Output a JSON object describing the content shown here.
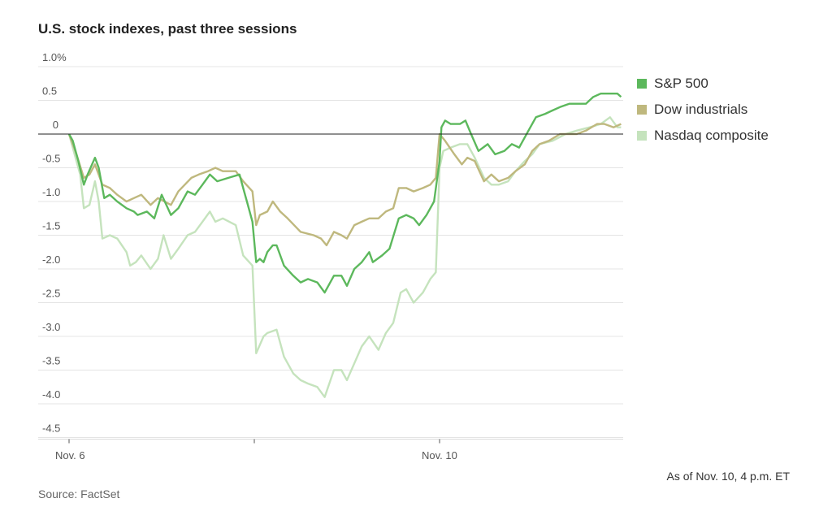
{
  "chart_data": {
    "type": "line",
    "title": "U.S. stock indexes, past three sessions",
    "xlabel": "",
    "ylabel": "",
    "x_units": "trading sessions since Nov. 6 open",
    "xlim": [
      0,
      3
    ],
    "ylim": [
      -4.5,
      1.0
    ],
    "y_ticks": [
      {
        "v": 1.0,
        "label": "1.0%"
      },
      {
        "v": 0.5,
        "label": "0.5"
      },
      {
        "v": 0,
        "label": "0"
      },
      {
        "v": -0.5,
        "label": "-0.5"
      },
      {
        "v": -1.0,
        "label": "-1.0"
      },
      {
        "v": -1.5,
        "label": "-1.5"
      },
      {
        "v": -2.0,
        "label": "-2.0"
      },
      {
        "v": -2.5,
        "label": "-2.5"
      },
      {
        "v": -3.0,
        "label": "-3.0"
      },
      {
        "v": -3.5,
        "label": "-3.5"
      },
      {
        "v": -4.0,
        "label": "-4.0"
      },
      {
        "v": -4.5,
        "label": "-4.5"
      }
    ],
    "x_ticks": [
      {
        "v": 0,
        "label": "Nov. 6"
      },
      {
        "v": 1,
        "label": ""
      },
      {
        "v": 2,
        "label": "Nov. 10"
      }
    ],
    "grid": true,
    "legend_position": "right",
    "series": [
      {
        "name": "Nasdaq composite",
        "color": "#c5e3bd",
        "points": [
          [
            0,
            0
          ],
          [
            0.03,
            -0.3
          ],
          [
            0.06,
            -0.6
          ],
          [
            0.08,
            -1.1
          ],
          [
            0.11,
            -1.05
          ],
          [
            0.14,
            -0.7
          ],
          [
            0.16,
            -1.0
          ],
          [
            0.18,
            -1.55
          ],
          [
            0.22,
            -1.5
          ],
          [
            0.26,
            -1.55
          ],
          [
            0.31,
            -1.75
          ],
          [
            0.33,
            -1.95
          ],
          [
            0.36,
            -1.9
          ],
          [
            0.39,
            -1.8
          ],
          [
            0.44,
            -2.0
          ],
          [
            0.48,
            -1.85
          ],
          [
            0.51,
            -1.5
          ],
          [
            0.55,
            -1.85
          ],
          [
            0.59,
            -1.7
          ],
          [
            0.64,
            -1.5
          ],
          [
            0.68,
            -1.45
          ],
          [
            0.72,
            -1.3
          ],
          [
            0.76,
            -1.15
          ],
          [
            0.79,
            -1.3
          ],
          [
            0.83,
            -1.25
          ],
          [
            0.9,
            -1.35
          ],
          [
            0.94,
            -1.8
          ],
          [
            0.99,
            -1.95
          ],
          [
            1.01,
            -3.25
          ],
          [
            1.05,
            -3.0
          ],
          [
            1.07,
            -2.95
          ],
          [
            1.12,
            -2.9
          ],
          [
            1.16,
            -3.3
          ],
          [
            1.21,
            -3.55
          ],
          [
            1.25,
            -3.65
          ],
          [
            1.29,
            -3.7
          ],
          [
            1.34,
            -3.75
          ],
          [
            1.38,
            -3.9
          ],
          [
            1.43,
            -3.5
          ],
          [
            1.47,
            -3.5
          ],
          [
            1.5,
            -3.65
          ],
          [
            1.54,
            -3.4
          ],
          [
            1.58,
            -3.15
          ],
          [
            1.62,
            -3.0
          ],
          [
            1.67,
            -3.2
          ],
          [
            1.71,
            -2.95
          ],
          [
            1.75,
            -2.8
          ],
          [
            1.79,
            -2.35
          ],
          [
            1.82,
            -2.3
          ],
          [
            1.86,
            -2.5
          ],
          [
            1.91,
            -2.35
          ],
          [
            1.95,
            -2.15
          ],
          [
            1.98,
            -2.05
          ],
          [
            2.0,
            -0.5
          ],
          [
            2.02,
            -0.25
          ],
          [
            2.06,
            -0.2
          ],
          [
            2.11,
            -0.15
          ],
          [
            2.15,
            -0.15
          ],
          [
            2.19,
            -0.35
          ],
          [
            2.24,
            -0.65
          ],
          [
            2.28,
            -0.75
          ],
          [
            2.32,
            -0.75
          ],
          [
            2.37,
            -0.7
          ],
          [
            2.41,
            -0.55
          ],
          [
            2.46,
            -0.4
          ],
          [
            2.5,
            -0.3
          ],
          [
            2.54,
            -0.15
          ],
          [
            2.61,
            -0.1
          ],
          [
            2.68,
            0.0
          ],
          [
            2.74,
            0.05
          ],
          [
            2.81,
            0.1
          ],
          [
            2.87,
            0.15
          ],
          [
            2.92,
            0.25
          ],
          [
            2.96,
            0.1
          ],
          [
            2.98,
            0.1
          ]
        ]
      },
      {
        "name": "Dow industrials",
        "color": "#bfb87e",
        "points": [
          [
            0,
            0
          ],
          [
            0.04,
            -0.3
          ],
          [
            0.08,
            -0.65
          ],
          [
            0.11,
            -0.6
          ],
          [
            0.14,
            -0.45
          ],
          [
            0.18,
            -0.75
          ],
          [
            0.22,
            -0.8
          ],
          [
            0.26,
            -0.9
          ],
          [
            0.31,
            -1.0
          ],
          [
            0.35,
            -0.95
          ],
          [
            0.39,
            -0.9
          ],
          [
            0.44,
            -1.05
          ],
          [
            0.48,
            -0.95
          ],
          [
            0.55,
            -1.05
          ],
          [
            0.59,
            -0.85
          ],
          [
            0.66,
            -0.65
          ],
          [
            0.7,
            -0.6
          ],
          [
            0.75,
            -0.55
          ],
          [
            0.79,
            -0.5
          ],
          [
            0.83,
            -0.55
          ],
          [
            0.9,
            -0.55
          ],
          [
            0.94,
            -0.7
          ],
          [
            0.99,
            -0.85
          ],
          [
            1.01,
            -1.35
          ],
          [
            1.03,
            -1.2
          ],
          [
            1.07,
            -1.15
          ],
          [
            1.1,
            -1.0
          ],
          [
            1.14,
            -1.15
          ],
          [
            1.18,
            -1.25
          ],
          [
            1.25,
            -1.45
          ],
          [
            1.32,
            -1.5
          ],
          [
            1.36,
            -1.55
          ],
          [
            1.39,
            -1.65
          ],
          [
            1.43,
            -1.45
          ],
          [
            1.47,
            -1.5
          ],
          [
            1.5,
            -1.55
          ],
          [
            1.54,
            -1.35
          ],
          [
            1.58,
            -1.3
          ],
          [
            1.62,
            -1.25
          ],
          [
            1.67,
            -1.25
          ],
          [
            1.71,
            -1.15
          ],
          [
            1.75,
            -1.1
          ],
          [
            1.78,
            -0.8
          ],
          [
            1.82,
            -0.8
          ],
          [
            1.86,
            -0.85
          ],
          [
            1.91,
            -0.8
          ],
          [
            1.95,
            -0.75
          ],
          [
            1.98,
            -0.65
          ],
          [
            2.0,
            0.0
          ],
          [
            2.03,
            -0.1
          ],
          [
            2.08,
            -0.3
          ],
          [
            2.12,
            -0.45
          ],
          [
            2.15,
            -0.35
          ],
          [
            2.19,
            -0.4
          ],
          [
            2.24,
            -0.7
          ],
          [
            2.28,
            -0.6
          ],
          [
            2.32,
            -0.7
          ],
          [
            2.37,
            -0.65
          ],
          [
            2.41,
            -0.55
          ],
          [
            2.46,
            -0.45
          ],
          [
            2.5,
            -0.25
          ],
          [
            2.54,
            -0.15
          ],
          [
            2.59,
            -0.1
          ],
          [
            2.65,
            0.0
          ],
          [
            2.7,
            0.0
          ],
          [
            2.74,
            0.0
          ],
          [
            2.79,
            0.05
          ],
          [
            2.85,
            0.15
          ],
          [
            2.89,
            0.15
          ],
          [
            2.94,
            0.1
          ],
          [
            2.98,
            0.15
          ]
        ]
      },
      {
        "name": "S&P 500",
        "color": "#5cb85c",
        "points": [
          [
            0,
            0
          ],
          [
            0.02,
            -0.1
          ],
          [
            0.05,
            -0.4
          ],
          [
            0.08,
            -0.75
          ],
          [
            0.1,
            -0.6
          ],
          [
            0.14,
            -0.35
          ],
          [
            0.16,
            -0.5
          ],
          [
            0.19,
            -0.95
          ],
          [
            0.22,
            -0.9
          ],
          [
            0.26,
            -1.0
          ],
          [
            0.31,
            -1.1
          ],
          [
            0.35,
            -1.15
          ],
          [
            0.37,
            -1.2
          ],
          [
            0.42,
            -1.15
          ],
          [
            0.46,
            -1.25
          ],
          [
            0.5,
            -0.9
          ],
          [
            0.55,
            -1.2
          ],
          [
            0.59,
            -1.1
          ],
          [
            0.64,
            -0.85
          ],
          [
            0.68,
            -0.9
          ],
          [
            0.72,
            -0.75
          ],
          [
            0.76,
            -0.6
          ],
          [
            0.8,
            -0.7
          ],
          [
            0.86,
            -0.65
          ],
          [
            0.92,
            -0.6
          ],
          [
            0.94,
            -0.8
          ],
          [
            0.96,
            -1.0
          ],
          [
            0.99,
            -1.3
          ],
          [
            1.01,
            -1.9
          ],
          [
            1.03,
            -1.85
          ],
          [
            1.05,
            -1.9
          ],
          [
            1.07,
            -1.75
          ],
          [
            1.1,
            -1.65
          ],
          [
            1.12,
            -1.65
          ],
          [
            1.16,
            -1.95
          ],
          [
            1.21,
            -2.1
          ],
          [
            1.25,
            -2.2
          ],
          [
            1.29,
            -2.15
          ],
          [
            1.34,
            -2.2
          ],
          [
            1.38,
            -2.35
          ],
          [
            1.43,
            -2.1
          ],
          [
            1.47,
            -2.1
          ],
          [
            1.5,
            -2.25
          ],
          [
            1.54,
            -2.0
          ],
          [
            1.58,
            -1.9
          ],
          [
            1.62,
            -1.75
          ],
          [
            1.64,
            -1.9
          ],
          [
            1.69,
            -1.8
          ],
          [
            1.73,
            -1.7
          ],
          [
            1.78,
            -1.25
          ],
          [
            1.82,
            -1.2
          ],
          [
            1.86,
            -1.25
          ],
          [
            1.89,
            -1.35
          ],
          [
            1.93,
            -1.2
          ],
          [
            1.97,
            -1.0
          ],
          [
            2.0,
            -0.4
          ],
          [
            2.01,
            0.1
          ],
          [
            2.03,
            0.2
          ],
          [
            2.06,
            0.15
          ],
          [
            2.11,
            0.15
          ],
          [
            2.14,
            0.2
          ],
          [
            2.17,
            0.0
          ],
          [
            2.21,
            -0.25
          ],
          [
            2.26,
            -0.15
          ],
          [
            2.3,
            -0.3
          ],
          [
            2.35,
            -0.25
          ],
          [
            2.39,
            -0.15
          ],
          [
            2.43,
            -0.2
          ],
          [
            2.48,
            0.05
          ],
          [
            2.52,
            0.25
          ],
          [
            2.57,
            0.3
          ],
          [
            2.61,
            0.35
          ],
          [
            2.65,
            0.4
          ],
          [
            2.7,
            0.45
          ],
          [
            2.74,
            0.45
          ],
          [
            2.79,
            0.45
          ],
          [
            2.83,
            0.55
          ],
          [
            2.87,
            0.6
          ],
          [
            2.92,
            0.6
          ],
          [
            2.96,
            0.6
          ],
          [
            2.98,
            0.55
          ]
        ]
      }
    ]
  },
  "legend": [
    {
      "label": "S&P 500",
      "color": "#5cb85c"
    },
    {
      "label": "Dow industrials",
      "color": "#bfb87e"
    },
    {
      "label": "Nasdaq composite",
      "color": "#c5e3bd"
    }
  ],
  "note": "As of Nov. 10, 4 p.m. ET",
  "source": "Source: FactSet"
}
